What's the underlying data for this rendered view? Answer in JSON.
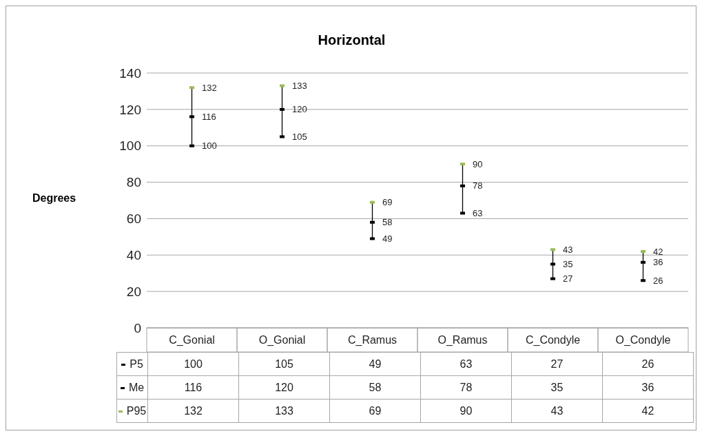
{
  "chart_data": {
    "type": "scatter",
    "title": "Horizontal",
    "ylabel": "Degrees",
    "categories": [
      "C_Gonial",
      "O_Gonial",
      "C_Ramus",
      "O_Ramus",
      "C_Condyle",
      "O_Condyle"
    ],
    "series": [
      {
        "name": "P5",
        "marker": "square",
        "color": "#000000",
        "values": [
          100,
          105,
          49,
          63,
          27,
          26
        ],
        "value_labels": [
          "100",
          "105",
          "49",
          "63",
          "27",
          "26"
        ]
      },
      {
        "name": "Me",
        "marker": "square",
        "color": "#000000",
        "values": [
          116,
          120,
          58,
          78,
          35,
          36
        ],
        "value_labels": [
          "116",
          "120",
          "58",
          "78",
          "35",
          "36"
        ]
      },
      {
        "name": "P95",
        "marker": "square",
        "color": "#9bbb59",
        "values": [
          132,
          133,
          69,
          90,
          43,
          42
        ],
        "value_labels": [
          "132",
          "133",
          "69",
          "90",
          "43",
          "42"
        ]
      }
    ],
    "ylim": [
      0,
      140
    ],
    "yticks": [
      0,
      20,
      40,
      60,
      80,
      100,
      120,
      140
    ],
    "grid": "y",
    "legend": "bottom"
  }
}
